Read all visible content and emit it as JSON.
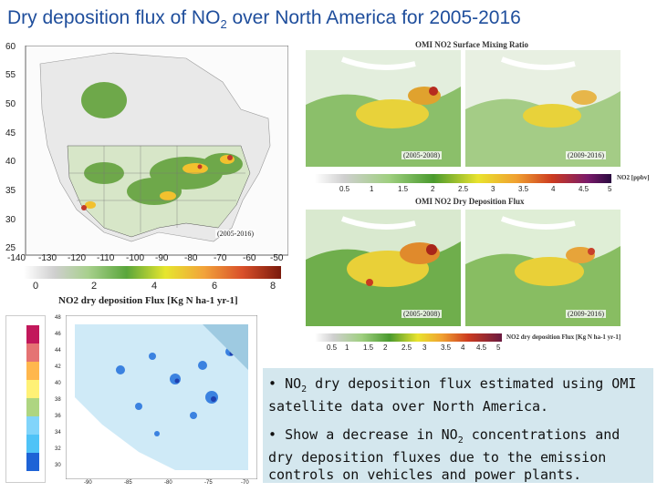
{
  "title": {
    "main": "Dry deposition flux of NO",
    "sub": "2",
    "rest": " over North America for 2005-2016"
  },
  "left_map": {
    "lat_ticks": [
      "60",
      "55",
      "50",
      "45",
      "40",
      "35",
      "30",
      "25"
    ],
    "lon_ticks": [
      "-140",
      "-130",
      "-120",
      "-110",
      "-100",
      "-90",
      "-80",
      "-70",
      "-60",
      "-50"
    ],
    "period": "(2005-2016)",
    "colorbar_ticks": [
      "0",
      "2",
      "4",
      "6",
      "8"
    ],
    "colorbar_title": "NO2 dry deposition Flux [Kg N ha-1 yr-1]"
  },
  "top_panel": {
    "caption": "OMI NO2 Surface Mixing Ratio",
    "period_left": "(2005-2008)",
    "period_right": "(2009-2016)",
    "colorbar_ticks": [
      "0.5",
      "1",
      "1.5",
      "2",
      "2.5",
      "3",
      "3.5",
      "4",
      "4.5",
      "5"
    ],
    "colorbar_unit": "NO2 [ppbv]"
  },
  "mid_panel": {
    "caption": "OMI NO2 Dry Deposition Flux",
    "period_left": "(2005-2008)",
    "period_right": "(2009-2016)",
    "colorbar_ticks": [
      "0.5",
      "1",
      "1.5",
      "2",
      "2.5",
      "3",
      "3.5",
      "4",
      "4.5",
      "5"
    ],
    "colorbar_unit": "NO2 dry deposition Flux [Kg N ha-1 yr-1]"
  },
  "trend_map": {
    "lat_ticks": [
      "48",
      "46",
      "44",
      "42",
      "40",
      "38",
      "36",
      "34",
      "32",
      "30"
    ],
    "lon_ticks": [
      "-90",
      "-85",
      "-80",
      "-75",
      "-70"
    ]
  },
  "bullets": {
    "b1_pre": "NO",
    "b1_sub": "2",
    "b1_post": " dry deposition flux estimated using OMI satellite data over North America.",
    "b2_pre": "Show a decrease in NO",
    "b2_sub": "2",
    "b2_post": " concentrations and dry deposition fluxes due to the emission controls on vehicles and power plants."
  },
  "colors": {
    "title": "#1f4e9c",
    "textbox": "#d4e7ee"
  }
}
